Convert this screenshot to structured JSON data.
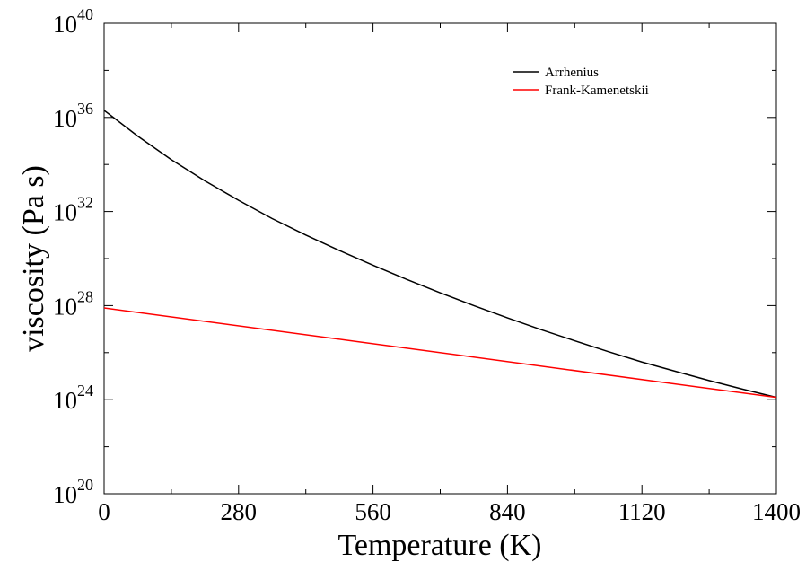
{
  "chart_data": {
    "type": "line",
    "title": "",
    "xlabel": "Temperature (K)",
    "ylabel": "viscosity (Pa s)",
    "xlim": [
      0,
      1400
    ],
    "ylim": [
      1e+20,
      1e+40
    ],
    "yscale": "log",
    "grid": false,
    "legend_position": "top-right",
    "x_ticks": [
      {
        "value": 0,
        "label": "0"
      },
      {
        "value": 280,
        "label": "280"
      },
      {
        "value": 560,
        "label": "560"
      },
      {
        "value": 840,
        "label": "840"
      },
      {
        "value": 1120,
        "label": "1120"
      },
      {
        "value": 1400,
        "label": "1400"
      }
    ],
    "y_ticks": [
      {
        "value": 1e+20,
        "base": "10",
        "exp": "20"
      },
      {
        "value": 1e+24,
        "base": "10",
        "exp": "24"
      },
      {
        "value": 1e+28,
        "base": "10",
        "exp": "28"
      },
      {
        "value": 1e+32,
        "base": "10",
        "exp": "32"
      },
      {
        "value": 1e+36,
        "base": "10",
        "exp": "36"
      },
      {
        "value": 1e+40,
        "base": "10",
        "exp": "40"
      }
    ],
    "series": [
      {
        "name": "Arrhenius",
        "color": "#000000",
        "x": [
          0,
          70,
          140,
          210,
          280,
          350,
          420,
          490,
          560,
          630,
          700,
          770,
          840,
          910,
          980,
          1050,
          1120,
          1190,
          1260,
          1330,
          1400
        ],
        "y": [
          2e+36,
          1.6e+35,
          1.6e+34,
          2e+33,
          3e+32,
          5e+31,
          1e+31,
          2.2e+30,
          5.2e+29,
          1.3e+29,
          3.5e+28,
          1e+28,
          3e+27,
          9.5e+26,
          3.2e+26,
          1.1e+26,
          4e+25,
          1.6e+25,
          6.5e+24,
          2.8e+24,
          1.25e+24
        ]
      },
      {
        "name": "Frank-Kamenetskii",
        "color": "#ff0000",
        "x": [
          0,
          1400
        ],
        "y": [
          7.94e+27,
          1.25e+24
        ]
      }
    ]
  }
}
